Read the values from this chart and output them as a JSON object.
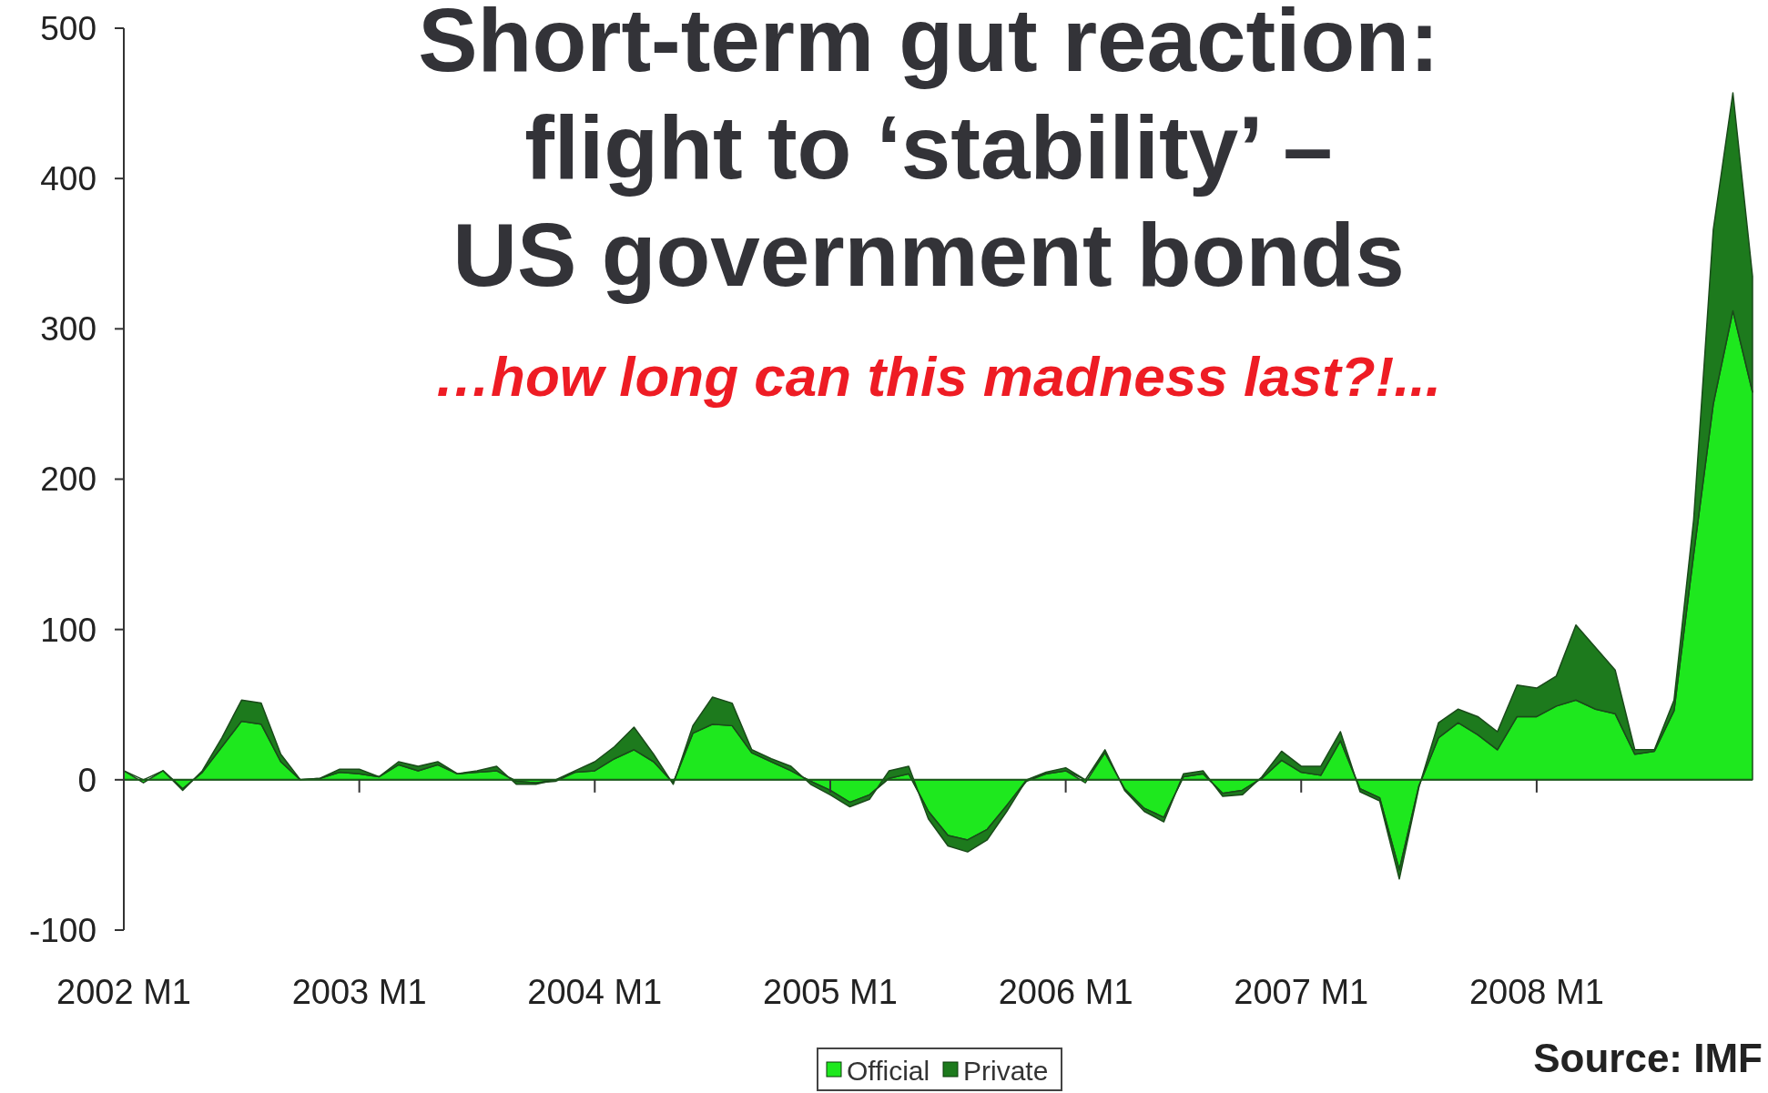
{
  "chart_data": {
    "type": "area",
    "title": "Short-term gut reaction:\nflight to ‘stability’ –\nUS government bonds",
    "subtitle": "…how long can this madness last?!...",
    "annotations": [
      "Source: IMF"
    ],
    "categories": [
      "2002 M1",
      null,
      null,
      null,
      null,
      null,
      null,
      null,
      null,
      null,
      null,
      null,
      "2003 M1",
      null,
      null,
      null,
      null,
      null,
      null,
      null,
      null,
      null,
      null,
      null,
      "2004 M1",
      null,
      null,
      null,
      null,
      null,
      null,
      null,
      null,
      null,
      null,
      null,
      "2005 M1",
      null,
      null,
      null,
      null,
      null,
      null,
      null,
      null,
      null,
      null,
      null,
      "2006 M1",
      null,
      null,
      null,
      null,
      null,
      null,
      null,
      null,
      null,
      null,
      null,
      "2007 M1",
      null,
      null,
      null,
      null,
      null,
      null,
      null,
      null,
      null,
      null,
      null,
      "2008 M1",
      null,
      null,
      null,
      null,
      null,
      null,
      null,
      null,
      null,
      null,
      null
    ],
    "series": [
      {
        "name": "Official",
        "color": "#1ee81e",
        "values": [
          6,
          -2,
          6,
          -6,
          5,
          22,
          39,
          37,
          12,
          0,
          1,
          5,
          4,
          2,
          10,
          6,
          10,
          4,
          5,
          6,
          -1,
          -2,
          -1,
          5,
          6,
          14,
          20,
          12,
          -2,
          31,
          37,
          36,
          18,
          12,
          6,
          -1,
          -7,
          -15,
          -10,
          1,
          4,
          -21,
          -37,
          -40,
          -33,
          -17,
          -1,
          4,
          6,
          -2,
          18,
          -6,
          -19,
          -25,
          2,
          4,
          -9,
          -7,
          1,
          13,
          5,
          3,
          26,
          -6,
          -12,
          -60,
          -4,
          28,
          38,
          30,
          20,
          42,
          42,
          49,
          53,
          47,
          44,
          17,
          19,
          46,
          150,
          250,
          312,
          258
        ]
      },
      {
        "name": "Private",
        "color": "#1d7a1d",
        "values": [
          0,
          0,
          0,
          -1,
          1,
          6,
          14,
          14,
          5,
          0,
          0,
          2,
          3,
          0,
          2,
          3,
          2,
          0,
          1,
          3,
          -2,
          -1,
          0,
          1,
          6,
          8,
          15,
          5,
          -1,
          5,
          18,
          15,
          2,
          2,
          3,
          -2,
          -3,
          -3,
          -3,
          5,
          5,
          -5,
          -7,
          -8,
          -7,
          -4,
          0,
          1,
          2,
          0,
          2,
          -1,
          -2,
          -3,
          2,
          2,
          -2,
          -3,
          1,
          6,
          4,
          6,
          6,
          -2,
          -2,
          -6,
          -1,
          10,
          9,
          12,
          12,
          21,
          19,
          20,
          50,
          41,
          29,
          3,
          1,
          7,
          23,
          116,
          145,
          77
        ]
      }
    ],
    "stacked": true,
    "ylim": [
      -100,
      500
    ],
    "yticks": [
      -100,
      0,
      100,
      200,
      300,
      400,
      500
    ],
    "legend": "bottom"
  }
}
